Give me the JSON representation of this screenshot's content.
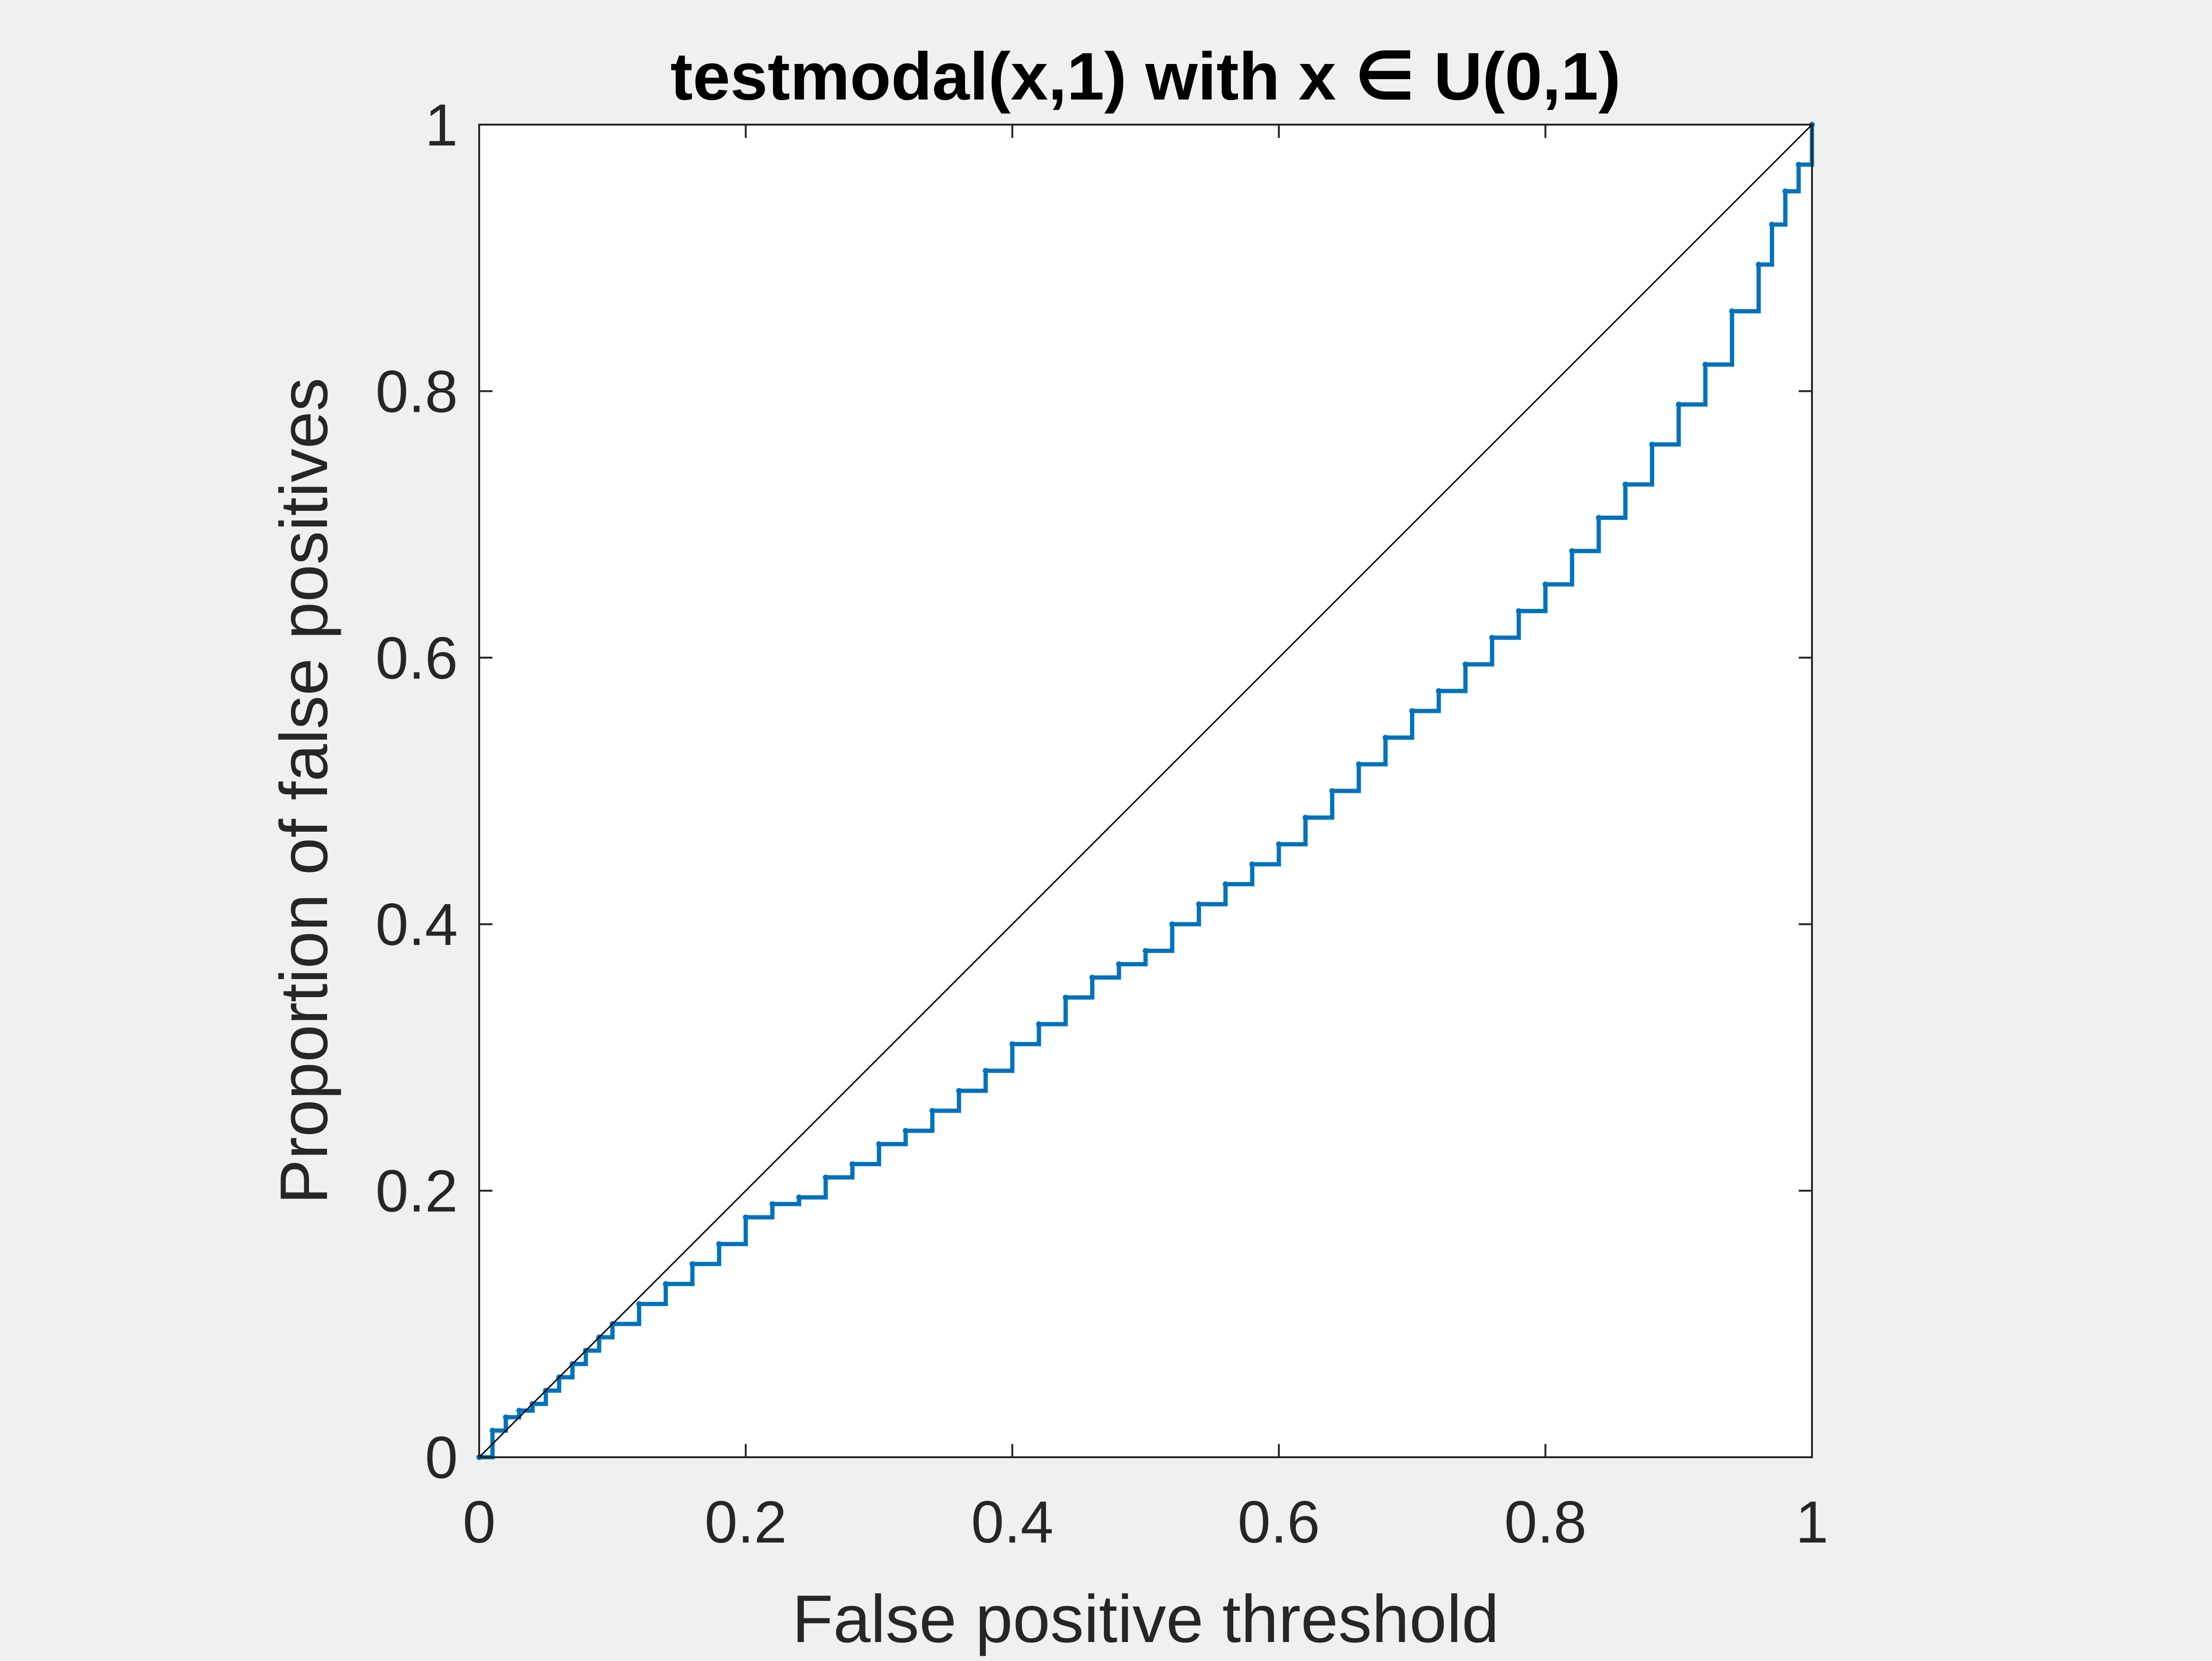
{
  "chart_data": {
    "type": "line",
    "title": "testmodal(x,1) with x ∈ U(0,1)",
    "xlabel": "False positive threshold",
    "ylabel": "Proportion of false positives",
    "xlim": [
      0,
      1
    ],
    "ylim": [
      0,
      1
    ],
    "xticks": [
      0,
      0.2,
      0.4,
      0.6,
      0.8,
      1
    ],
    "yticks": [
      0,
      0.2,
      0.4,
      0.6,
      0.8,
      1
    ],
    "xtick_labels": [
      "0",
      "0.2",
      "0.4",
      "0.6",
      "0.8",
      "1"
    ],
    "ytick_labels": [
      "0",
      "0.2",
      "0.4",
      "0.6",
      "0.8",
      "1"
    ],
    "grid": false,
    "box": true,
    "series": [
      {
        "style": "staircase",
        "color": "#0072bd",
        "x": [
          0,
          0.01,
          0.02,
          0.03,
          0.04,
          0.05,
          0.06,
          0.07,
          0.08,
          0.09,
          0.1,
          0.12,
          0.14,
          0.16,
          0.18,
          0.2,
          0.22,
          0.24,
          0.26,
          0.28,
          0.3,
          0.32,
          0.34,
          0.36,
          0.38,
          0.4,
          0.42,
          0.44,
          0.46,
          0.48,
          0.5,
          0.52,
          0.54,
          0.56,
          0.58,
          0.6,
          0.62,
          0.64,
          0.66,
          0.68,
          0.7,
          0.72,
          0.74,
          0.76,
          0.78,
          0.8,
          0.82,
          0.84,
          0.86,
          0.88,
          0.9,
          0.92,
          0.94,
          0.96,
          0.97,
          0.98,
          0.99,
          1.0
        ],
        "y": [
          0,
          0.02,
          0.03,
          0.035,
          0.04,
          0.05,
          0.06,
          0.07,
          0.08,
          0.09,
          0.1,
          0.115,
          0.13,
          0.145,
          0.16,
          0.18,
          0.19,
          0.195,
          0.21,
          0.22,
          0.235,
          0.245,
          0.26,
          0.275,
          0.29,
          0.31,
          0.325,
          0.345,
          0.36,
          0.37,
          0.38,
          0.4,
          0.415,
          0.43,
          0.445,
          0.46,
          0.48,
          0.5,
          0.52,
          0.54,
          0.56,
          0.575,
          0.595,
          0.615,
          0.635,
          0.655,
          0.68,
          0.705,
          0.73,
          0.76,
          0.79,
          0.82,
          0.86,
          0.895,
          0.925,
          0.95,
          0.97,
          1.0
        ]
      },
      {
        "style": "reference-diagonal",
        "color": "#000000",
        "x": [
          0,
          1
        ],
        "y": [
          0,
          1
        ]
      }
    ]
  }
}
